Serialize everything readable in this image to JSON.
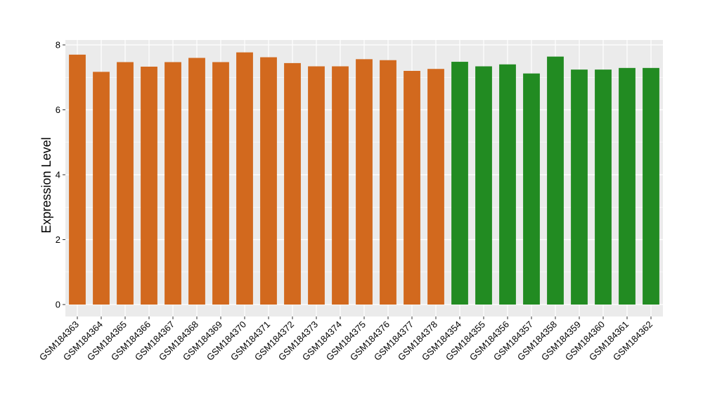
{
  "chart_data": {
    "type": "bar",
    "title": "",
    "xlabel": "",
    "ylabel": "Expression Level",
    "ylim": [
      0,
      8.2
    ],
    "yticks": [
      0,
      2,
      4,
      6,
      8
    ],
    "ytick_labels": [
      "0",
      "2",
      "4",
      "6",
      "8"
    ],
    "grid": true,
    "legend": "none",
    "background_color": "#ebebeb",
    "grid_color": "#ffffff",
    "categories": [
      "GSM184363",
      "GSM184364",
      "GSM184365",
      "GSM184366",
      "GSM184367",
      "GSM184368",
      "GSM184369",
      "GSM184370",
      "GSM184371",
      "GSM184372",
      "GSM184373",
      "GSM184374",
      "GSM184375",
      "GSM184376",
      "GSM184377",
      "GSM184378",
      "GSM184354",
      "GSM184355",
      "GSM184356",
      "GSM184357",
      "GSM184358",
      "GSM184359",
      "GSM184360",
      "GSM184361",
      "GSM184362"
    ],
    "values": [
      7.7,
      7.17,
      7.47,
      7.33,
      7.47,
      7.6,
      7.47,
      7.77,
      7.62,
      7.44,
      7.34,
      7.34,
      7.56,
      7.53,
      7.2,
      7.26,
      7.48,
      7.34,
      7.4,
      7.12,
      7.64,
      7.24,
      7.24,
      7.29,
      7.29
    ],
    "colors": [
      "#d2691e",
      "#d2691e",
      "#d2691e",
      "#d2691e",
      "#d2691e",
      "#d2691e",
      "#d2691e",
      "#d2691e",
      "#d2691e",
      "#d2691e",
      "#d2691e",
      "#d2691e",
      "#d2691e",
      "#d2691e",
      "#d2691e",
      "#d2691e",
      "#228b22",
      "#228b22",
      "#228b22",
      "#228b22",
      "#228b22",
      "#228b22",
      "#228b22",
      "#228b22",
      "#228b22"
    ]
  }
}
